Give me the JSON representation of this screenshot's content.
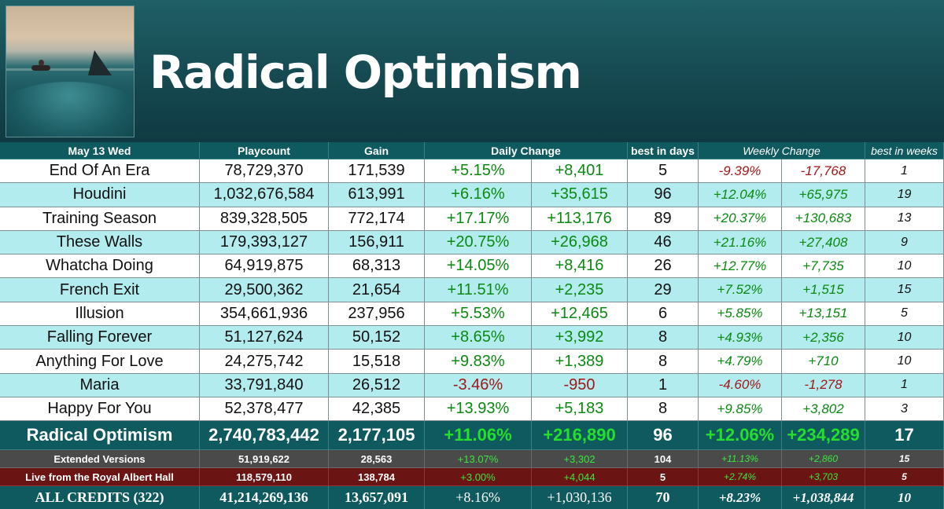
{
  "header": {
    "album_title": "Radical Optimism"
  },
  "columns": {
    "date": "May 13 Wed",
    "playcount": "Playcount",
    "gain": "Gain",
    "daily_change": "Daily Change",
    "best_days": "best in days",
    "weekly_change": "Weekly Change",
    "best_weeks": "best in weeks"
  },
  "tracks": [
    {
      "name": "End Of An Era",
      "playcount": "78,729,370",
      "gain": "171,539",
      "daily_pct": "+5.15%",
      "daily_abs": "+8,401",
      "best_days": "5",
      "weekly_pct": "-9.39%",
      "weekly_abs": "-17,768",
      "best_weeks": "1"
    },
    {
      "name": "Houdini",
      "playcount": "1,032,676,584",
      "gain": "613,991",
      "daily_pct": "+6.16%",
      "daily_abs": "+35,615",
      "best_days": "96",
      "weekly_pct": "+12.04%",
      "weekly_abs": "+65,975",
      "best_weeks": "19"
    },
    {
      "name": "Training Season",
      "playcount": "839,328,505",
      "gain": "772,174",
      "daily_pct": "+17.17%",
      "daily_abs": "+113,176",
      "best_days": "89",
      "weekly_pct": "+20.37%",
      "weekly_abs": "+130,683",
      "best_weeks": "13"
    },
    {
      "name": "These Walls",
      "playcount": "179,393,127",
      "gain": "156,911",
      "daily_pct": "+20.75%",
      "daily_abs": "+26,968",
      "best_days": "46",
      "weekly_pct": "+21.16%",
      "weekly_abs": "+27,408",
      "best_weeks": "9"
    },
    {
      "name": "Whatcha Doing",
      "playcount": "64,919,875",
      "gain": "68,313",
      "daily_pct": "+14.05%",
      "daily_abs": "+8,416",
      "best_days": "26",
      "weekly_pct": "+12.77%",
      "weekly_abs": "+7,735",
      "best_weeks": "10"
    },
    {
      "name": "French Exit",
      "playcount": "29,500,362",
      "gain": "21,654",
      "daily_pct": "+11.51%",
      "daily_abs": "+2,235",
      "best_days": "29",
      "weekly_pct": "+7.52%",
      "weekly_abs": "+1,515",
      "best_weeks": "15"
    },
    {
      "name": "Illusion",
      "playcount": "354,661,936",
      "gain": "237,956",
      "daily_pct": "+5.53%",
      "daily_abs": "+12,465",
      "best_days": "6",
      "weekly_pct": "+5.85%",
      "weekly_abs": "+13,151",
      "best_weeks": "5"
    },
    {
      "name": "Falling Forever",
      "playcount": "51,127,624",
      "gain": "50,152",
      "daily_pct": "+8.65%",
      "daily_abs": "+3,992",
      "best_days": "8",
      "weekly_pct": "+4.93%",
      "weekly_abs": "+2,356",
      "best_weeks": "10"
    },
    {
      "name": "Anything For Love",
      "playcount": "24,275,742",
      "gain": "15,518",
      "daily_pct": "+9.83%",
      "daily_abs": "+1,389",
      "best_days": "8",
      "weekly_pct": "+4.79%",
      "weekly_abs": "+710",
      "best_weeks": "10"
    },
    {
      "name": "Maria",
      "playcount": "33,791,840",
      "gain": "26,512",
      "daily_pct": "-3.46%",
      "daily_abs": "-950",
      "best_days": "1",
      "weekly_pct": "-4.60%",
      "weekly_abs": "-1,278",
      "best_weeks": "1"
    },
    {
      "name": "Happy For You",
      "playcount": "52,378,477",
      "gain": "42,385",
      "daily_pct": "+13.93%",
      "daily_abs": "+5,183",
      "best_days": "8",
      "weekly_pct": "+9.85%",
      "weekly_abs": "+3,802",
      "best_weeks": "3"
    }
  ],
  "album_total": {
    "name": "Radical Optimism",
    "playcount": "2,740,783,442",
    "gain": "2,177,105",
    "daily_pct": "+11.06%",
    "daily_abs": "+216,890",
    "best_days": "96",
    "weekly_pct": "+12.06%",
    "weekly_abs": "+234,289",
    "best_weeks": "17"
  },
  "extended": {
    "name": "Extended Versions",
    "playcount": "51,919,622",
    "gain": "28,563",
    "daily_pct": "+13.07%",
    "daily_abs": "+3,302",
    "best_days": "104",
    "weekly_pct": "+11.13%",
    "weekly_abs": "+2,860",
    "best_weeks": "15"
  },
  "live": {
    "name": "Live from the Royal Albert Hall",
    "playcount": "118,579,110",
    "gain": "138,784",
    "daily_pct": "+3.00%",
    "daily_abs": "+4,044",
    "best_days": "5",
    "weekly_pct": "+2.74%",
    "weekly_abs": "+3,703",
    "best_weeks": "5"
  },
  "all_credits": {
    "name": "ALL CREDITS (322)",
    "playcount": "41,214,269,136",
    "gain": "13,657,091",
    "daily_pct": "+8.16%",
    "daily_abs": "+1,030,136",
    "best_days": "70",
    "weekly_pct": "+8.23%",
    "weekly_abs": "+1,038,844",
    "best_weeks": "10"
  },
  "colors": {
    "header_bg": "#0f5a5f",
    "alt_row": "#b3ecef",
    "positive": "#0a8a10",
    "negative": "#a01818",
    "extended_bg": "#4a4a4a",
    "live_bg": "#6b1414"
  }
}
